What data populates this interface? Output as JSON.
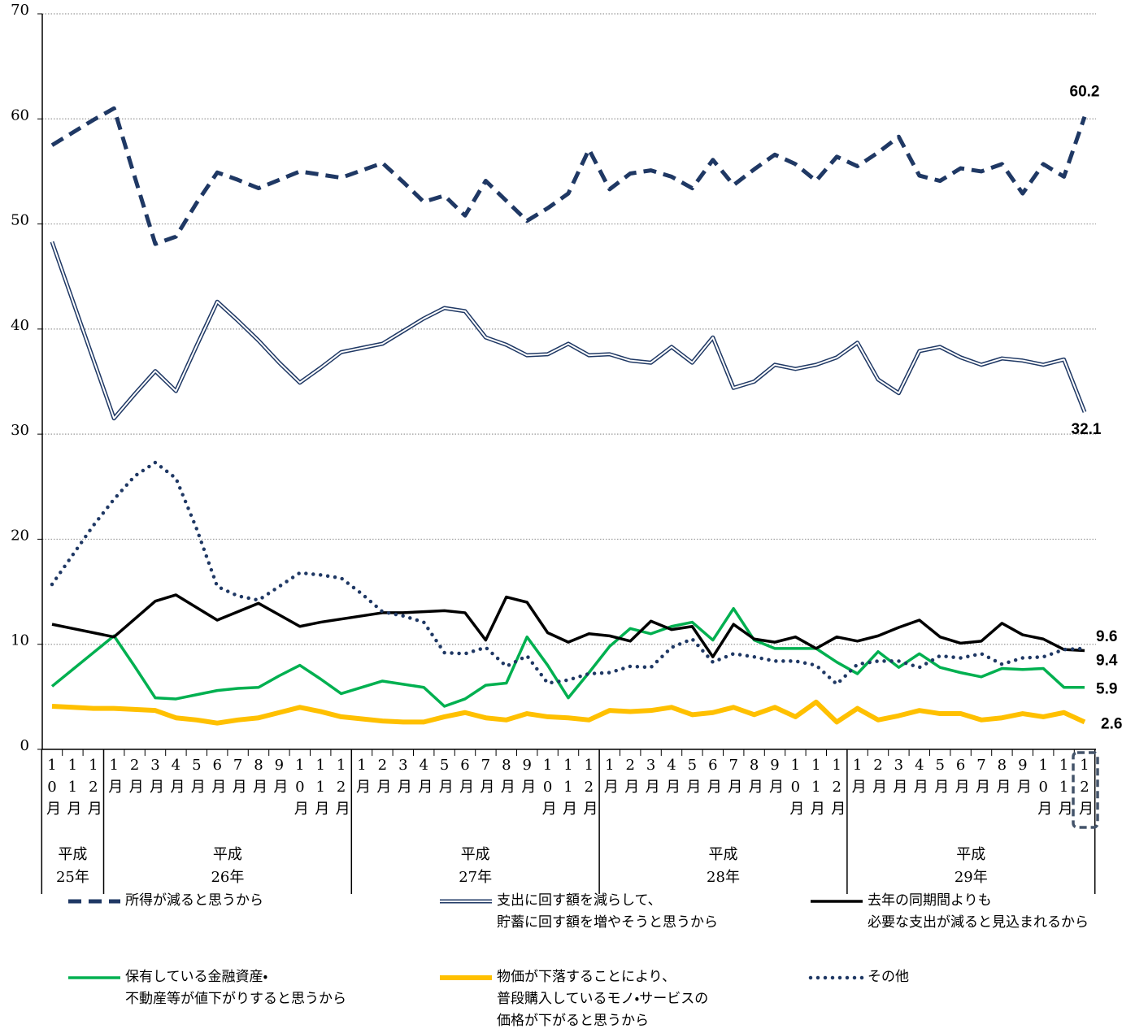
{
  "chart_data": {
    "type": "line",
    "categories": [
      "10月",
      "11月",
      "12月",
      "1月",
      "2月",
      "3月",
      "4月",
      "5月",
      "6月",
      "7月",
      "8月",
      "9月",
      "10月",
      "11月",
      "12月",
      "1月",
      "2月",
      "3月",
      "4月",
      "5月",
      "6月",
      "7月",
      "8月",
      "9月",
      "10月",
      "11月",
      "12月",
      "1月",
      "2月",
      "3月",
      "4月",
      "5月",
      "6月",
      "7月",
      "8月",
      "9月",
      "10月",
      "11月",
      "12月",
      "1月",
      "2月",
      "3月",
      "4月",
      "5月",
      "6月",
      "7月",
      "8月",
      "9月",
      "10月",
      "11月",
      "12月"
    ],
    "year_labels": [
      "平成25年",
      "平成26年",
      "平成27年",
      "平成28年",
      "平成29年"
    ],
    "ylim": [
      0,
      70
    ],
    "yticks": [
      0,
      10,
      20,
      30,
      40,
      50,
      60,
      70
    ],
    "grid": true,
    "series": [
      {
        "name": "所得が減ると思うから",
        "color": "#1f3864",
        "style": "dashed",
        "values": [
          57.5,
          58.7,
          59.9,
          61.0,
          54.5,
          48.1,
          48.8,
          52.0,
          54.9,
          54.2,
          53.4,
          54.2,
          55.0,
          54.7,
          54.4,
          55.1,
          55.8,
          54.0,
          52.1,
          52.7,
          50.8,
          54.1,
          52.2,
          50.3,
          51.5,
          52.9,
          57.1,
          53.3,
          54.8,
          55.1,
          54.5,
          53.4,
          56.1,
          53.7,
          55.2,
          56.6,
          55.7,
          54.1,
          56.4,
          55.5,
          56.8,
          58.3,
          54.6,
          54.1,
          55.3,
          55.0,
          55.7,
          52.9,
          55.7,
          54.5,
          60.2
        ]
      },
      {
        "name": "支出に回す額を減らして、\n貯蓄に回す額を増やそうと思うから",
        "color": "#1f3864",
        "style": "double",
        "values": [
          48.3,
          42.7,
          37.1,
          31.5,
          33.8,
          36.0,
          34.1,
          38.4,
          42.6,
          40.8,
          38.9,
          36.8,
          34.9,
          36.3,
          37.8,
          38.2,
          38.6,
          39.8,
          41.0,
          42.0,
          41.7,
          39.2,
          38.5,
          37.5,
          37.6,
          38.6,
          37.5,
          37.6,
          37.0,
          36.8,
          38.3,
          36.8,
          39.2,
          34.4,
          35.0,
          36.6,
          36.2,
          36.6,
          37.3,
          38.7,
          35.2,
          33.9,
          37.9,
          38.3,
          37.3,
          36.6,
          37.2,
          37.0,
          36.6,
          37.1,
          32.1
        ]
      },
      {
        "name": "去年の同期間よりも\n必要な支出が減ると見込まれるから",
        "color": "#000000",
        "style": "solid",
        "values": [
          11.9,
          11.5,
          11.1,
          10.7,
          12.4,
          14.1,
          14.7,
          13.5,
          12.3,
          13.1,
          13.9,
          12.8,
          11.7,
          12.1,
          12.4,
          12.7,
          13.0,
          13.0,
          13.1,
          13.2,
          13.0,
          10.4,
          14.5,
          14.0,
          11.1,
          10.2,
          11.0,
          10.8,
          10.3,
          12.2,
          11.4,
          11.7,
          8.8,
          11.9,
          10.5,
          10.2,
          10.7,
          9.6,
          10.7,
          10.3,
          10.8,
          11.6,
          12.3,
          10.7,
          10.1,
          10.3,
          12.0,
          10.9,
          10.5,
          9.5,
          9.4
        ]
      },
      {
        "name": "保有している金融資産・\n不動産等が値下がりすると思うから",
        "color": "#00b050",
        "style": "solid",
        "values": [
          6.0,
          7.6,
          9.2,
          10.8,
          7.9,
          4.9,
          4.8,
          5.2,
          5.6,
          5.8,
          5.9,
          7.0,
          8.0,
          6.7,
          5.3,
          5.9,
          6.5,
          6.2,
          5.9,
          4.1,
          4.8,
          6.1,
          6.3,
          10.7,
          8.0,
          4.9,
          7.3,
          9.8,
          11.5,
          11.0,
          11.7,
          12.1,
          10.4,
          13.4,
          10.4,
          9.6,
          9.6,
          9.6,
          8.3,
          7.2,
          9.3,
          7.8,
          9.1,
          7.8,
          7.3,
          6.9,
          7.7,
          7.6,
          7.7,
          5.9,
          5.9
        ]
      },
      {
        "name": "物価が下落することにより、\n普段購入しているモノ・サービスの\n価格が下がると思うから",
        "color": "#ffc000",
        "style": "thick",
        "values": [
          4.1,
          4.0,
          3.9,
          3.9,
          3.8,
          3.7,
          3.0,
          2.8,
          2.5,
          2.8,
          3.0,
          3.5,
          4.0,
          3.6,
          3.1,
          2.9,
          2.7,
          2.6,
          2.6,
          3.1,
          3.5,
          3.0,
          2.8,
          3.4,
          3.1,
          3.0,
          2.8,
          3.7,
          3.6,
          3.7,
          4.0,
          3.3,
          3.5,
          4.0,
          3.3,
          4.0,
          3.1,
          4.5,
          2.6,
          3.9,
          2.8,
          3.2,
          3.7,
          3.4,
          3.4,
          2.8,
          3.0,
          3.4,
          3.1,
          3.5,
          2.6
        ]
      },
      {
        "name": "その他",
        "color": "#1f3864",
        "style": "dotted",
        "values": [
          15.7,
          18.5,
          21.3,
          23.8,
          26.0,
          27.3,
          25.8,
          21.0,
          15.5,
          14.6,
          14.2,
          15.5,
          16.8,
          16.6,
          16.3,
          14.8,
          13.1,
          12.7,
          12.1,
          9.2,
          9.1,
          9.7,
          7.9,
          8.9,
          6.3,
          6.6,
          7.2,
          7.3,
          7.9,
          7.8,
          9.7,
          10.5,
          8.3,
          9.1,
          8.8,
          8.4,
          8.4,
          8.0,
          6.2,
          8.1,
          8.4,
          8.4,
          7.8,
          8.9,
          8.7,
          9.1,
          8.1,
          8.7,
          8.8,
          9.5,
          9.6
        ]
      }
    ]
  }
}
